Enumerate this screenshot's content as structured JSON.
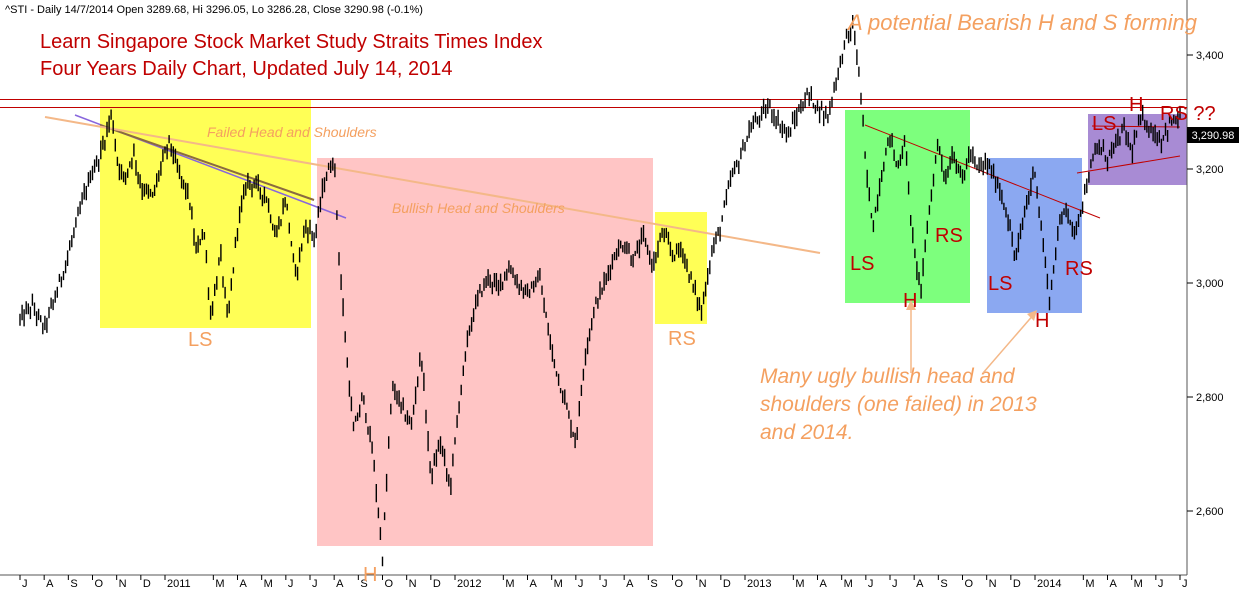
{
  "header_text": "^STI - Daily 14/7/2014 Open 3289.68, Hi 3296.05, Lo 3286.28, Close 3290.98 (-0.1%)",
  "chart_data": {
    "type": "candlestick",
    "title_lines": [
      "Learn Singapore Stock Market Study Straits Times Index",
      "Four Years Daily Chart, Updated July 14, 2014"
    ],
    "annotations": {
      "bearish": "A potential Bearish H and S forming",
      "failed_hs": "Failed Head and Shoulders",
      "bullish_hs": "Bullish Head and Shoulders",
      "many_ugly_lines": [
        "Many ugly bullish head and",
        "shoulders (one failed) in 2013",
        "and 2014."
      ]
    },
    "last_price_label": "3,290.98",
    "last_price": 3290.98,
    "ylim": [
      2480,
      3490
    ],
    "y_ticks": [
      {
        "value": 2600,
        "label": "2,600"
      },
      {
        "value": 2800,
        "label": "2,800"
      },
      {
        "value": 3000,
        "label": "3,000"
      },
      {
        "value": 3200,
        "label": "3,200"
      },
      {
        "value": 3400,
        "label": "3,400"
      }
    ],
    "x_ticks": [
      {
        "label": "J",
        "t": 0.0
      },
      {
        "label": "A",
        "t": 1.0
      },
      {
        "label": "S",
        "t": 2.0
      },
      {
        "label": "O",
        "t": 3.0
      },
      {
        "label": "N",
        "t": 4.0
      },
      {
        "label": "D",
        "t": 5.0
      },
      {
        "label": "2011",
        "t": 6.0
      },
      {
        "label": "M",
        "t": 8.0
      },
      {
        "label": "A",
        "t": 9.0
      },
      {
        "label": "M",
        "t": 10.0
      },
      {
        "label": "J",
        "t": 11.0
      },
      {
        "label": "J",
        "t": 12.0
      },
      {
        "label": "A",
        "t": 13.0
      },
      {
        "label": "S",
        "t": 14.0
      },
      {
        "label": "O",
        "t": 15.0
      },
      {
        "label": "N",
        "t": 16.0
      },
      {
        "label": "D",
        "t": 17.0
      },
      {
        "label": "2012",
        "t": 18.0
      },
      {
        "label": "M",
        "t": 20.0
      },
      {
        "label": "A",
        "t": 21.0
      },
      {
        "label": "M",
        "t": 22.0
      },
      {
        "label": "J",
        "t": 23.0
      },
      {
        "label": "J",
        "t": 24.0
      },
      {
        "label": "A",
        "t": 25.0
      },
      {
        "label": "S",
        "t": 26.0
      },
      {
        "label": "O",
        "t": 27.0
      },
      {
        "label": "N",
        "t": 28.0
      },
      {
        "label": "D",
        "t": 29.0
      },
      {
        "label": "2013",
        "t": 30.0
      },
      {
        "label": "M",
        "t": 32.0
      },
      {
        "label": "A",
        "t": 33.0
      },
      {
        "label": "M",
        "t": 34.0
      },
      {
        "label": "J",
        "t": 35.0
      },
      {
        "label": "J",
        "t": 36.0
      },
      {
        "label": "A",
        "t": 37.0
      },
      {
        "label": "S",
        "t": 38.0
      },
      {
        "label": "O",
        "t": 39.0
      },
      {
        "label": "N",
        "t": 40.0
      },
      {
        "label": "D",
        "t": 41.0
      },
      {
        "label": "2014",
        "t": 42.0
      },
      {
        "label": "M",
        "t": 44.0
      },
      {
        "label": "A",
        "t": 45.0
      },
      {
        "label": "M",
        "t": 46.0
      },
      {
        "label": "J",
        "t": 47.0
      },
      {
        "label": "J",
        "t": 48.0
      }
    ],
    "resistance_levels": [
      3308,
      3322
    ],
    "price_path": [
      [
        0.0,
        2935
      ],
      [
        0.5,
        2960
      ],
      [
        1.0,
        2920
      ],
      [
        1.5,
        2980
      ],
      [
        2.0,
        3050
      ],
      [
        2.5,
        3130
      ],
      [
        3.0,
        3200
      ],
      [
        3.2,
        3210
      ],
      [
        3.5,
        3250
      ],
      [
        3.8,
        3300
      ],
      [
        4.0,
        3220
      ],
      [
        4.3,
        3180
      ],
      [
        4.7,
        3230
      ],
      [
        5.0,
        3170
      ],
      [
        5.5,
        3150
      ],
      [
        5.8,
        3200
      ],
      [
        6.2,
        3250
      ],
      [
        6.5,
        3200
      ],
      [
        7.0,
        3150
      ],
      [
        7.3,
        3050
      ],
      [
        7.6,
        3100
      ],
      [
        7.9,
        2940
      ],
      [
        8.3,
        3050
      ],
      [
        8.6,
        2930
      ],
      [
        9.0,
        3100
      ],
      [
        9.4,
        3180
      ],
      [
        9.8,
        3170
      ],
      [
        10.2,
        3150
      ],
      [
        10.6,
        3080
      ],
      [
        11.0,
        3150
      ],
      [
        11.4,
        3010
      ],
      [
        11.8,
        3100
      ],
      [
        12.2,
        3080
      ],
      [
        12.6,
        3180
      ],
      [
        13.0,
        3220
      ],
      [
        13.2,
        3050
      ],
      [
        13.5,
        2880
      ],
      [
        13.8,
        2740
      ],
      [
        14.2,
        2800
      ],
      [
        14.6,
        2700
      ],
      [
        15.0,
        2520
      ],
      [
        15.4,
        2820
      ],
      [
        15.8,
        2780
      ],
      [
        16.2,
        2750
      ],
      [
        16.6,
        2880
      ],
      [
        17.0,
        2660
      ],
      [
        17.4,
        2720
      ],
      [
        17.8,
        2640
      ],
      [
        18.2,
        2800
      ],
      [
        18.6,
        2920
      ],
      [
        19.0,
        2980
      ],
      [
        19.4,
        3010
      ],
      [
        19.8,
        2990
      ],
      [
        20.2,
        3030
      ],
      [
        20.6,
        3000
      ],
      [
        21.0,
        2980
      ],
      [
        21.5,
        3010
      ],
      [
        22.0,
        2880
      ],
      [
        22.5,
        2800
      ],
      [
        23.0,
        2720
      ],
      [
        23.4,
        2880
      ],
      [
        23.8,
        2960
      ],
      [
        24.2,
        3000
      ],
      [
        24.6,
        3050
      ],
      [
        25.0,
        3070
      ],
      [
        25.4,
        3040
      ],
      [
        25.8,
        3080
      ],
      [
        26.2,
        3030
      ],
      [
        26.6,
        3090
      ],
      [
        27.0,
        3050
      ],
      [
        27.4,
        3060
      ],
      [
        27.8,
        3000
      ],
      [
        28.2,
        2950
      ],
      [
        28.6,
        3050
      ],
      [
        29.0,
        3100
      ],
      [
        29.4,
        3180
      ],
      [
        29.8,
        3220
      ],
      [
        30.2,
        3270
      ],
      [
        30.6,
        3290
      ],
      [
        31.0,
        3310
      ],
      [
        31.4,
        3280
      ],
      [
        31.8,
        3260
      ],
      [
        32.2,
        3300
      ],
      [
        32.6,
        3330
      ],
      [
        33.0,
        3310
      ],
      [
        33.4,
        3290
      ],
      [
        33.8,
        3360
      ],
      [
        34.2,
        3430
      ],
      [
        34.5,
        3450
      ],
      [
        34.8,
        3330
      ],
      [
        35.0,
        3200
      ],
      [
        35.3,
        3100
      ],
      [
        35.6,
        3180
      ],
      [
        36.0,
        3260
      ],
      [
        36.3,
        3200
      ],
      [
        36.6,
        3250
      ],
      [
        37.0,
        3050
      ],
      [
        37.3,
        2990
      ],
      [
        37.6,
        3120
      ],
      [
        38.0,
        3250
      ],
      [
        38.3,
        3180
      ],
      [
        38.6,
        3230
      ],
      [
        39.0,
        3180
      ],
      [
        39.3,
        3230
      ],
      [
        39.6,
        3200
      ],
      [
        40.0,
        3210
      ],
      [
        40.4,
        3180
      ],
      [
        40.8,
        3130
      ],
      [
        41.2,
        3040
      ],
      [
        41.6,
        3130
      ],
      [
        42.0,
        3200
      ],
      [
        42.3,
        3080
      ],
      [
        42.6,
        2970
      ],
      [
        43.0,
        3100
      ],
      [
        43.3,
        3140
      ],
      [
        43.6,
        3080
      ],
      [
        44.0,
        3150
      ],
      [
        44.3,
        3200
      ],
      [
        44.6,
        3240
      ],
      [
        45.0,
        3220
      ],
      [
        45.3,
        3240
      ],
      [
        45.7,
        3270
      ],
      [
        46.0,
        3230
      ],
      [
        46.4,
        3290
      ],
      [
        46.8,
        3270
      ],
      [
        47.2,
        3250
      ],
      [
        47.6,
        3280
      ],
      [
        48.0,
        3291
      ]
    ]
  },
  "labels": {
    "ls_left": "LS",
    "h_bottom": "H",
    "rs_mid": "RS",
    "ls_green": "LS",
    "h_green": "H",
    "rs_green": "RS",
    "ls_blue": "LS",
    "h_blue": "H",
    "rs_blue": "RS",
    "ls_purple": "LS",
    "h_purple": "H",
    "rs_purple": "RS ??"
  }
}
